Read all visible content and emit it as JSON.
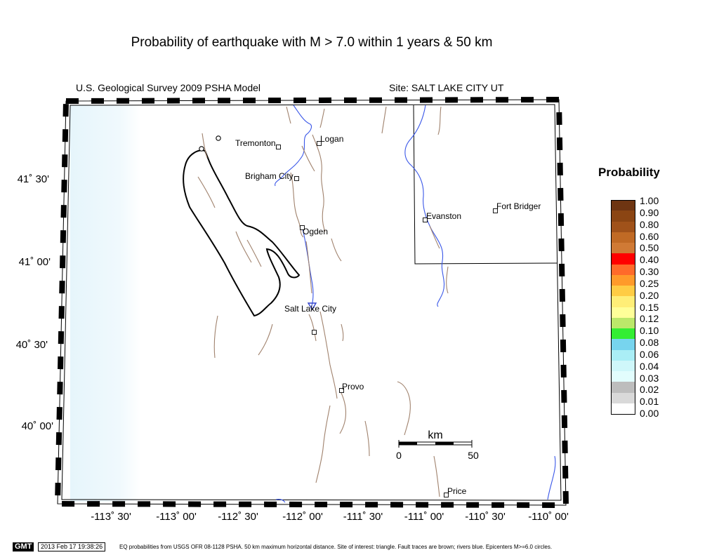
{
  "title": "Probability of earthquake with M > 7.0 within 1 years & 50 km",
  "model_label": "U.S. Geological Survey 2009 PSHA Model",
  "site_label": "Site: SALT  LAKE CITY UT",
  "latitude_labels": [
    "41˚ 30'",
    "41˚ 00'",
    "40˚ 30'",
    "40˚ 00'"
  ],
  "longitude_labels": [
    "-113˚ 30'",
    "-113˚ 00'",
    "-112˚ 30'",
    "-112˚ 00'",
    "-111˚ 30'",
    "-111˚ 00'",
    "-110˚ 30'",
    "-110˚ 00'"
  ],
  "cities": [
    {
      "name": "Tremonton"
    },
    {
      "name": "Logan"
    },
    {
      "name": "Brigham City"
    },
    {
      "name": "Ogden"
    },
    {
      "name": "Salt Lake City"
    },
    {
      "name": "Provo"
    },
    {
      "name": "Evanston"
    },
    {
      "name": "Fort Bridger"
    },
    {
      "name": "Price"
    }
  ],
  "scale_bar": {
    "unit": "km",
    "start": "0",
    "end": "50"
  },
  "legend": {
    "title": "Probability",
    "levels": [
      "1.00",
      "0.90",
      "0.80",
      "0.60",
      "0.50",
      "0.40",
      "0.30",
      "0.25",
      "0.20",
      "0.15",
      "0.12",
      "0.10",
      "0.08",
      "0.06",
      "0.04",
      "0.03",
      "0.02",
      "0.01",
      "0.00"
    ],
    "colors": [
      "#6e3512",
      "#8b4513",
      "#a0521a",
      "#c06a25",
      "#d07a35",
      "#ff0000",
      "#ff6a2a",
      "#ff9a2a",
      "#ffcc44",
      "#ffee77",
      "#ffff99",
      "#bbe86a",
      "#33ee33",
      "#77d4ee",
      "#aaeef6",
      "#cff7fa",
      "#e2fdfd",
      "#bdbdbd",
      "#d9d9d9",
      "#ffffff"
    ]
  },
  "footer": {
    "badge": "GMT",
    "timestamp": "2013 Feb 17 19:38:26",
    "caption": "EQ probabilities from USGS OFR 08-1128 PSHA. 50 km maximum horizontal distance. Site of interest: triangle. Fault traces are brown; rivers blue. Epicenters M>=6.0 circles."
  }
}
